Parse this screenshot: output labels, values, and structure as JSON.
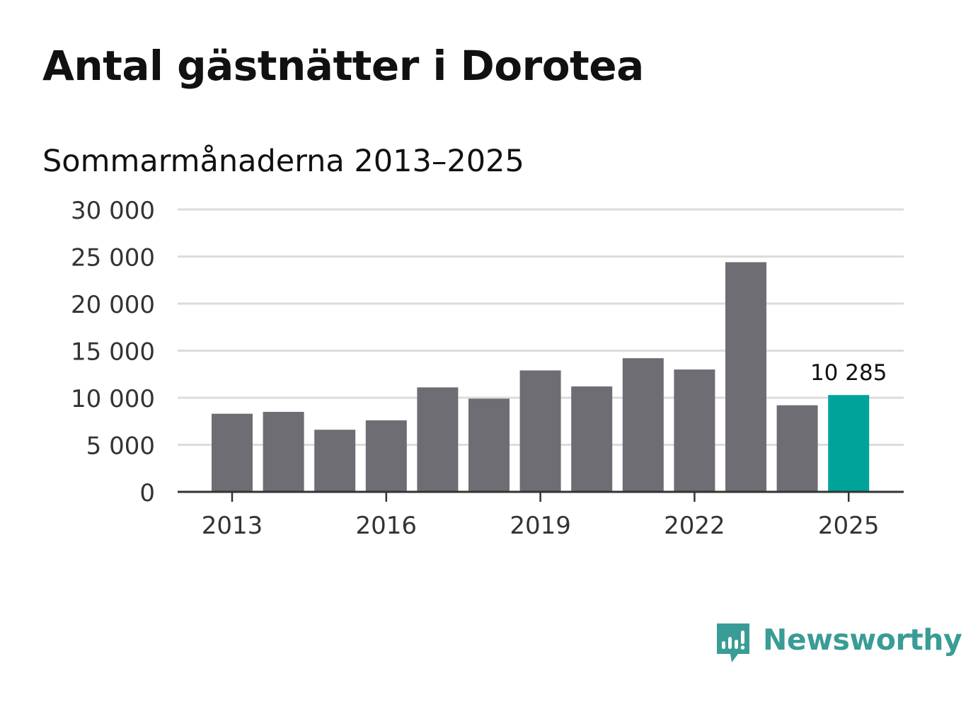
{
  "header": {
    "title": "Antal gästnätter i Dorotea",
    "subtitle": "Sommarmånaderna 2013–2025"
  },
  "brand": {
    "name": "Newsworthy",
    "icon": "newsworthy-logo-icon",
    "color": "#3a9c96"
  },
  "chart_data": {
    "type": "bar",
    "title": "Antal gästnätter i Dorotea",
    "subtitle": "Sommarmånaderna 2013–2025",
    "categories": [
      "2013",
      "2014",
      "2015",
      "2016",
      "2017",
      "2018",
      "2019",
      "2020",
      "2021",
      "2022",
      "2023",
      "2024",
      "2025"
    ],
    "values": [
      8300,
      8500,
      6600,
      7600,
      11100,
      9900,
      12900,
      11200,
      14200,
      13000,
      24400,
      9200,
      10285
    ],
    "x_tick_labels": [
      "2013",
      "2016",
      "2019",
      "2022",
      "2025"
    ],
    "y_tick_values": [
      0,
      5000,
      10000,
      15000,
      20000,
      25000,
      30000
    ],
    "y_tick_labels": [
      "0",
      "5 000",
      "10 000",
      "15 000",
      "20 000",
      "25 000",
      "30 000"
    ],
    "ylim": [
      0,
      30000
    ],
    "grid": true,
    "legend": "none",
    "highlight": {
      "category": "2025",
      "label": "10 285"
    },
    "colors": {
      "bar": "#6e6d73",
      "highlight": "#00a39a",
      "grid": "#dcdcdc",
      "axis": "#333333"
    }
  }
}
